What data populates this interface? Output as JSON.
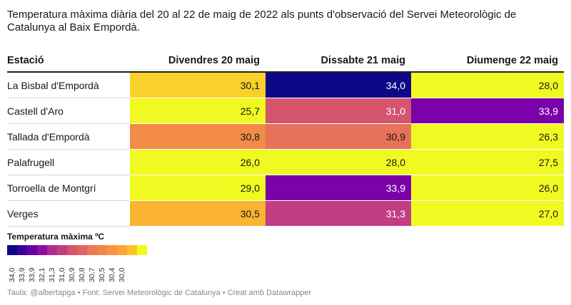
{
  "title": "Temperatura màxima diària del 20 al 22 de maig de 2022 als punts d'observació del Servei Meteorològic de Catalunya al Baix Empordà.",
  "footer": "Taula: @albertapga • Font: Servei Meteorològic de Catalunya • Creat amb Datawrapper",
  "legend": {
    "title": "Temperatura màxima ºC",
    "swatch_colors": [
      "#0d0887",
      "#3a049a",
      "#6a00a8",
      "#8f0da4",
      "#b12a90",
      "#c33d80",
      "#d5546e",
      "#e16462",
      "#ed7953",
      "#f2844b",
      "#f89540",
      "#fca636",
      "#fdc328",
      "#f0f921"
    ],
    "labels": [
      "34,0",
      "33,9",
      "33,9",
      "32,1",
      "31,3",
      "31,0",
      "30,9",
      "30,8",
      "30,7",
      "30,5",
      "30,4",
      "30,0"
    ]
  },
  "chart_data": {
    "type": "table",
    "columns": [
      "Estació",
      "Divendres 20 maig",
      "Dissabte 21 maig",
      "Diumenge 22 maig"
    ],
    "rows": [
      {
        "station": "La Bisbal d'Empordà",
        "values": [
          "30,1",
          "34,0",
          "28,0"
        ],
        "colors": [
          "#f9d12a",
          "#0d0887",
          "#f0f921"
        ]
      },
      {
        "station": "Castell d'Aro",
        "values": [
          "25,7",
          "31,0",
          "33,9"
        ],
        "colors": [
          "#f0f921",
          "#d5546e",
          "#7a02a8"
        ]
      },
      {
        "station": "Tallada d'Empordà",
        "values": [
          "30,8",
          "30,9",
          "26,3"
        ],
        "colors": [
          "#f28c46",
          "#e8715a",
          "#f0f921"
        ]
      },
      {
        "station": "Palafrugell",
        "values": [
          "26,0",
          "28,0",
          "27,5"
        ],
        "colors": [
          "#f0f921",
          "#f0f921",
          "#f0f921"
        ]
      },
      {
        "station": "Torroella de Montgrí",
        "values": [
          "29,0",
          "33,9",
          "26,0"
        ],
        "colors": [
          "#f0f921",
          "#7a02a8",
          "#f0f921"
        ]
      },
      {
        "station": "Verges",
        "values": [
          "30,5",
          "31,3",
          "27,0"
        ],
        "colors": [
          "#fbb332",
          "#c23d82",
          "#f0f921"
        ]
      }
    ]
  }
}
